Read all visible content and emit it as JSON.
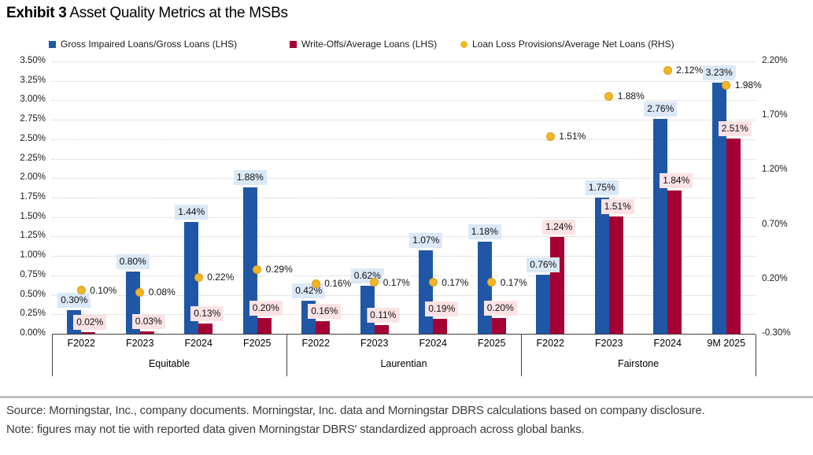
{
  "title": {
    "exhibit": "Exhibit 3",
    "text": "Asset Quality Metrics at the MSBs"
  },
  "legend": [
    {
      "label": "Gross Impaired Loans/Gross Loans (LHS)",
      "marker": "square",
      "color": "#1F57A6"
    },
    {
      "label": "Write-Offs/Average Loans (LHS)",
      "marker": "square",
      "color": "#A50034"
    },
    {
      "label": "Loan Loss Provisions/Average Net Loans (RHS)",
      "marker": "circle",
      "color": "#F2B626"
    }
  ],
  "chart_data": {
    "type": "bar",
    "title": "Asset Quality Metrics at the MSBs",
    "groups": [
      {
        "name": "Equitable",
        "periods": [
          "F2022",
          "F2023",
          "F2024",
          "F2025"
        ]
      },
      {
        "name": "Laurentian",
        "periods": [
          "F2022",
          "F2023",
          "F2024",
          "F2025"
        ]
      },
      {
        "name": "Fairstone",
        "periods": [
          "F2022",
          "F2023",
          "F2024",
          "9M 2025"
        ]
      }
    ],
    "series": [
      {
        "name": "Gross Impaired Loans/Gross Loans (LHS)",
        "type": "bar",
        "axis": "left",
        "color": "#1F57A6",
        "label_bg": "#DBE8F6",
        "values": [
          0.3,
          0.8,
          1.44,
          1.88,
          0.42,
          0.62,
          1.07,
          1.18,
          0.76,
          1.75,
          2.76,
          3.23
        ]
      },
      {
        "name": "Write-Offs/Average Loans (LHS)",
        "type": "bar",
        "axis": "left",
        "color": "#A50034",
        "label_bg": "#FBE3E5",
        "values": [
          0.02,
          0.03,
          0.13,
          0.2,
          0.16,
          0.11,
          0.19,
          0.2,
          1.24,
          1.51,
          1.84,
          2.51
        ]
      },
      {
        "name": "Loan Loss Provisions/Average Net Loans (RHS)",
        "type": "scatter",
        "axis": "right",
        "color": "#F2B626",
        "values": [
          0.1,
          0.08,
          0.22,
          0.29,
          0.16,
          0.17,
          0.17,
          0.17,
          1.51,
          1.88,
          2.12,
          1.98
        ]
      }
    ],
    "left_axis": {
      "min": 0,
      "max": 3.5,
      "step": 0.25,
      "ticks": [
        "0.00%",
        "0.25%",
        "0.50%",
        "0.75%",
        "1.00%",
        "1.25%",
        "1.50%",
        "1.75%",
        "2.00%",
        "2.25%",
        "2.50%",
        "2.75%",
        "3.00%",
        "3.25%",
        "3.50%"
      ]
    },
    "right_axis": {
      "min": -0.3,
      "max": 2.2,
      "step": 0.5,
      "ticks": [
        "-0.30%",
        "0.20%",
        "0.70%",
        "1.20%",
        "1.70%",
        "2.20%"
      ]
    },
    "grid": "dotted horizontal",
    "legend_position": "top"
  },
  "footer": {
    "source": "Source: Morningstar, Inc., company documents. Morningstar, Inc. data and Morningstar DBRS calculations based on company disclosure.",
    "note": "Note: figures may not tie with reported data given Morningstar DBRS' standardized approach across global banks."
  }
}
